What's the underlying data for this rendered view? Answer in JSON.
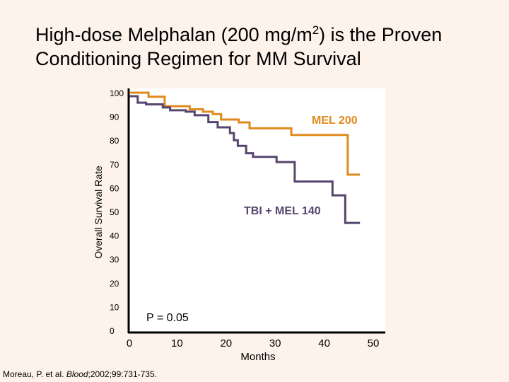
{
  "slide": {
    "title_part1": "High-dose Melphalan (200 mg/m",
    "title_sup": "2",
    "title_part2": ") is the Proven\nConditioning Regimen for MM Survival",
    "citation_authors": "Moreau, P. et al. ",
    "citation_journal": "Blood",
    "citation_rest": ";2002;99:731-735."
  },
  "chart_data": {
    "type": "line",
    "step": true,
    "title": "",
    "xlabel": "Months",
    "ylabel": "Overall Survival Rate",
    "xlim": [
      0,
      50
    ],
    "ylim": [
      0,
      100
    ],
    "xticks": [
      0,
      10,
      20,
      30,
      40,
      50
    ],
    "yticks": [
      0,
      10,
      20,
      30,
      40,
      50,
      60,
      70,
      80,
      90,
      100
    ],
    "grid": false,
    "annotation": "P = 0.05",
    "series": [
      {
        "name": "MEL 200",
        "color": "#e08a1e",
        "points": [
          [
            0,
            100
          ],
          [
            3.9,
            98.3
          ],
          [
            7.2,
            94.3
          ],
          [
            12.3,
            93
          ],
          [
            15,
            92
          ],
          [
            17,
            91
          ],
          [
            18.7,
            88.7
          ],
          [
            22.3,
            87.5
          ],
          [
            24.5,
            85
          ],
          [
            33,
            82.2
          ],
          [
            44.5,
            65.5
          ],
          [
            47,
            65.5
          ]
        ]
      },
      {
        "name": "TBI + MEL 140",
        "color": "#56456e",
        "points": [
          [
            0,
            98.5
          ],
          [
            1.7,
            95.8
          ],
          [
            3.4,
            95.1
          ],
          [
            6.8,
            93.8
          ],
          [
            8.3,
            92.6
          ],
          [
            11.5,
            92
          ],
          [
            13.3,
            90.5
          ],
          [
            16.1,
            87.6
          ],
          [
            18,
            85.4
          ],
          [
            20.5,
            83
          ],
          [
            21.3,
            80
          ],
          [
            22.1,
            77.6
          ],
          [
            23.8,
            74.5
          ],
          [
            25.2,
            73
          ],
          [
            30,
            70.8
          ],
          [
            33.7,
            62.6
          ],
          [
            41.4,
            56.8
          ],
          [
            44,
            45.2
          ],
          [
            47,
            45.2
          ]
        ]
      }
    ]
  }
}
